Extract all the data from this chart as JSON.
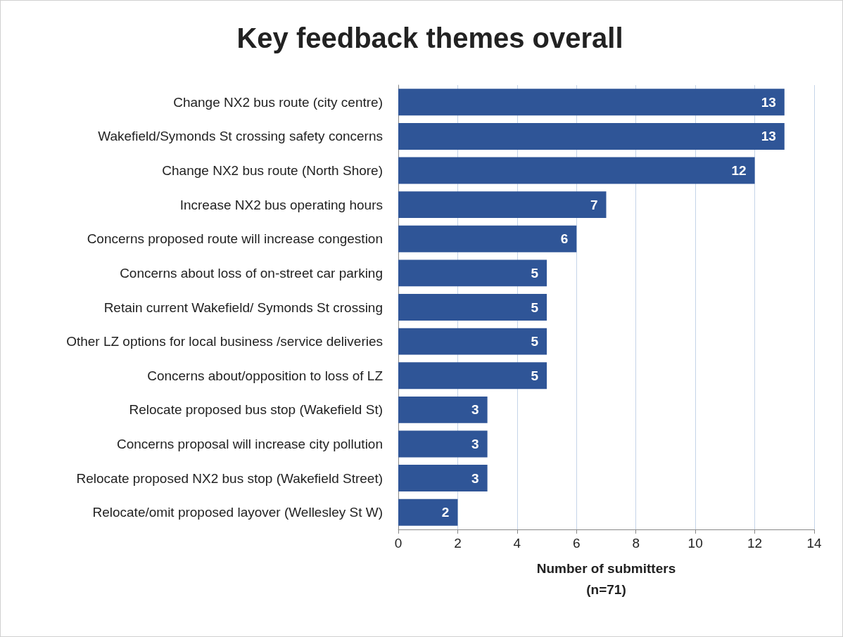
{
  "chart_data": {
    "type": "bar",
    "orientation": "horizontal",
    "title": "Key feedback themes overall",
    "xlabel": "Number of submitters\n(n=71)",
    "categories": [
      "Change NX2 bus route (city centre)",
      "Wakefield/Symonds St crossing safety concerns",
      "Change NX2 bus route (North Shore)",
      "Increase NX2 bus operating hours",
      "Concerns proposed route will increase congestion",
      "Concerns about loss of on-street car parking",
      "Retain current Wakefield/ Symonds St crossing",
      "Other LZ options for local business /service deliveries",
      "Concerns about/opposition to loss of LZ",
      "Relocate proposed bus stop (Wakefield St)",
      "Concerns proposal will increase city pollution",
      "Relocate proposed NX2 bus stop (Wakefield Street)",
      "Relocate/omit proposed layover (Wellesley St W)"
    ],
    "values": [
      13,
      13,
      12,
      7,
      6,
      5,
      5,
      5,
      5,
      3,
      3,
      3,
      2
    ],
    "color": "#2f5597",
    "data_labels": true,
    "grid": "x",
    "xlim": [
      0,
      14
    ],
    "xticks": [
      0,
      2,
      4,
      6,
      8,
      10,
      12,
      14
    ]
  }
}
